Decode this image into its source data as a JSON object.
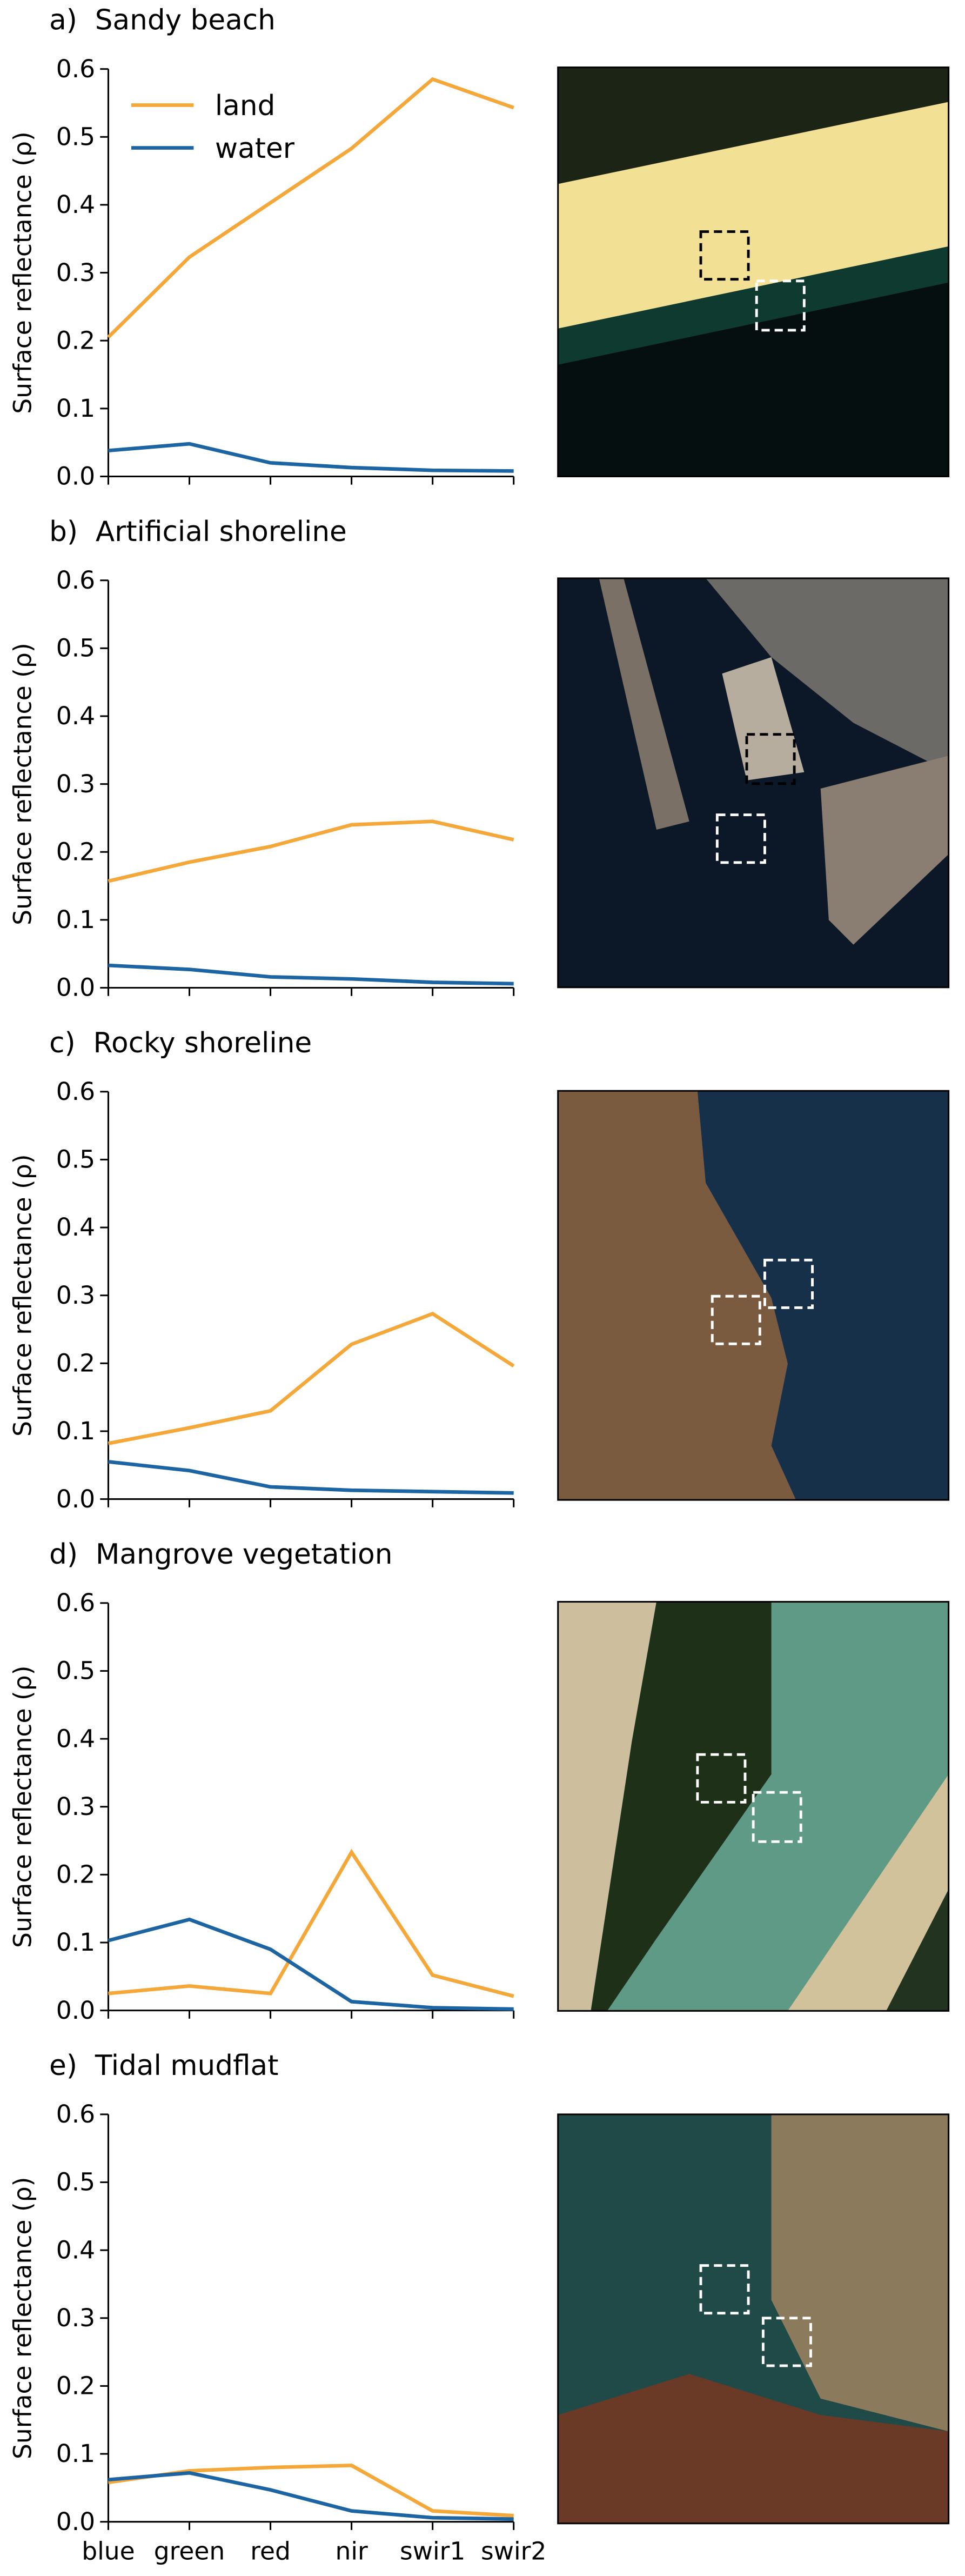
{
  "chart_data": [
    {
      "type": "line",
      "title": "a)  Sandy beach",
      "y_label": "Surface reflectance (ρ)",
      "legend": "upper left",
      "series": [
        {
          "name": "land",
          "color": "#f5a83a",
          "values": [
            0.205,
            0.323,
            0.403,
            0.483,
            0.585,
            0.543
          ]
        },
        {
          "name": "water",
          "color": "#1c65a2",
          "values": [
            0.038,
            0.048,
            0.02,
            0.013,
            0.009,
            0.008
          ]
        }
      ],
      "ylim": [
        0,
        0.6
      ],
      "yticks": [
        0.0,
        0.1,
        0.2,
        0.3,
        0.4,
        0.5,
        0.6
      ]
    },
    {
      "type": "line",
      "title": "b)  Artificial shoreline",
      "y_label": "Surface reflectance (ρ)",
      "series": [
        {
          "name": "land",
          "color": "#f5a83a",
          "values": [
            0.157,
            0.185,
            0.208,
            0.24,
            0.245,
            0.218
          ]
        },
        {
          "name": "water",
          "color": "#1c65a2",
          "values": [
            0.033,
            0.027,
            0.016,
            0.013,
            0.008,
            0.006
          ]
        }
      ],
      "ylim": [
        0,
        0.6
      ],
      "yticks": [
        0.0,
        0.1,
        0.2,
        0.3,
        0.4,
        0.5,
        0.6
      ]
    },
    {
      "type": "line",
      "title": "c)  Rocky shoreline",
      "y_label": "Surface reflectance (ρ)",
      "series": [
        {
          "name": "land",
          "color": "#f5a83a",
          "values": [
            0.082,
            0.105,
            0.13,
            0.228,
            0.273,
            0.196
          ]
        },
        {
          "name": "water",
          "color": "#1c65a2",
          "values": [
            0.055,
            0.042,
            0.018,
            0.013,
            0.011,
            0.009
          ]
        }
      ],
      "ylim": [
        0,
        0.6
      ],
      "yticks": [
        0.0,
        0.1,
        0.2,
        0.3,
        0.4,
        0.5,
        0.6
      ]
    },
    {
      "type": "line",
      "title": "d)  Mangrove vegetation",
      "y_label": "Surface reflectance (ρ)",
      "series": [
        {
          "name": "land",
          "color": "#f5a83a",
          "values": [
            0.025,
            0.036,
            0.025,
            0.233,
            0.052,
            0.021
          ]
        },
        {
          "name": "water",
          "color": "#1c65a2",
          "values": [
            0.103,
            0.134,
            0.09,
            0.013,
            0.004,
            0.002
          ]
        }
      ],
      "ylim": [
        0,
        0.6
      ],
      "yticks": [
        0.0,
        0.1,
        0.2,
        0.3,
        0.4,
        0.5,
        0.6
      ]
    },
    {
      "type": "line",
      "title": "e)  Tidal mudflat",
      "y_label": "Surface reflectance (ρ)",
      "categories": [
        "blue",
        "green",
        "red",
        "nir",
        "swir1",
        "swir2"
      ],
      "series": [
        {
          "name": "land",
          "color": "#f5a83a",
          "values": [
            0.058,
            0.075,
            0.08,
            0.083,
            0.016,
            0.009
          ]
        },
        {
          "name": "water",
          "color": "#1c65a2",
          "values": [
            0.062,
            0.072,
            0.047,
            0.016,
            0.006,
            0.004
          ]
        }
      ],
      "ylim": [
        0,
        0.6
      ],
      "yticks": [
        0.0,
        0.1,
        0.2,
        0.3,
        0.4,
        0.5,
        0.6
      ]
    }
  ]
}
